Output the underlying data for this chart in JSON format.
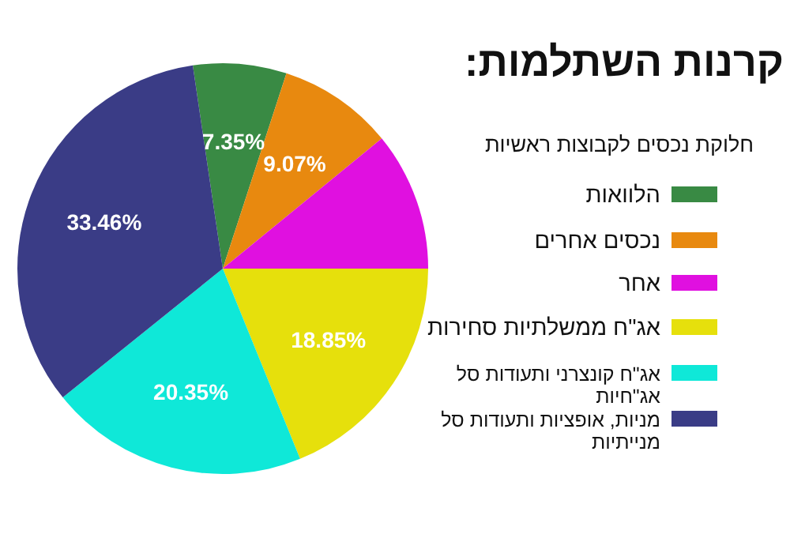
{
  "chart_data": {
    "type": "pie",
    "title": "קרנות השתלמות:",
    "subtitle": "חלוקת נכסים לקבוצות ראשיות",
    "categories": [
      "הלוואות",
      "נכסים אחרים",
      "אחר",
      "אג\"ח ממשלתיות סחירות",
      "אג\"ח קונצרני ותעודות סל אג\"חיות",
      "מניות, אופציות ותעודות סל מנייתיות"
    ],
    "values": [
      7.35,
      9.07,
      10.92,
      18.85,
      20.35,
      33.46
    ],
    "colors": [
      "#398a44",
      "#e8890f",
      "#e010e0",
      "#e6e00c",
      "#0fe8d8",
      "#3a3c86"
    ],
    "value_labels": [
      "7.35%",
      "9.07%",
      null,
      "18.85%",
      "20.35%",
      "33.46%"
    ],
    "legend": "right"
  }
}
